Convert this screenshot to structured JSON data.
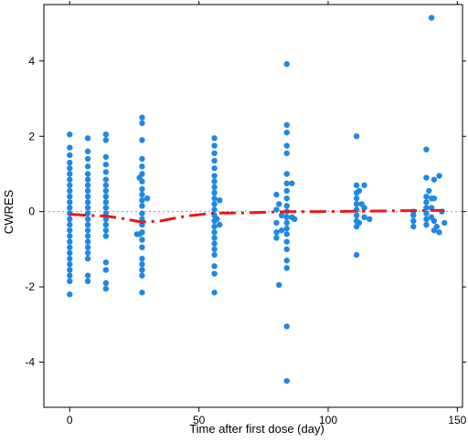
{
  "chart_data": {
    "type": "scatter",
    "xlabel": "Time after first dose (day)",
    "ylabel": "CWRES",
    "xlim": [
      -10,
      152
    ],
    "ylim": [
      -5.2,
      5.5
    ],
    "x_ticks": [
      0,
      50,
      100,
      150
    ],
    "y_ticks": [
      -4,
      -2,
      0,
      2,
      4
    ],
    "reference_line": {
      "y": 0,
      "style": "dotted",
      "color": "#999999"
    },
    "point_color": "#1e88e5",
    "trend_color": "#e41a1c",
    "series": [
      {
        "kind": "points",
        "points": [
          [
            0,
            2.05
          ],
          [
            0,
            1.7
          ],
          [
            0,
            1.5
          ],
          [
            0,
            1.3
          ],
          [
            0,
            1.15
          ],
          [
            0,
            1.0
          ],
          [
            0,
            0.85
          ],
          [
            0,
            0.7
          ],
          [
            0,
            0.55
          ],
          [
            0,
            0.4
          ],
          [
            0,
            0.25
          ],
          [
            0,
            0.1
          ],
          [
            0,
            -0.05
          ],
          [
            0,
            -0.2
          ],
          [
            0,
            -0.35
          ],
          [
            0,
            -0.5
          ],
          [
            0,
            -0.65
          ],
          [
            0,
            -0.8
          ],
          [
            0,
            -0.95
          ],
          [
            0,
            -1.1
          ],
          [
            0,
            -1.25
          ],
          [
            0,
            -1.4
          ],
          [
            0,
            -1.55
          ],
          [
            0,
            -1.7
          ],
          [
            0,
            -1.85
          ],
          [
            0,
            -2.2
          ],
          [
            7,
            1.95
          ],
          [
            7,
            1.6
          ],
          [
            7,
            1.4
          ],
          [
            7,
            1.2
          ],
          [
            7,
            1.0
          ],
          [
            7,
            0.85
          ],
          [
            7,
            0.7
          ],
          [
            7,
            0.55
          ],
          [
            7,
            0.4
          ],
          [
            7,
            0.25
          ],
          [
            7,
            0.1
          ],
          [
            7,
            -0.05
          ],
          [
            7,
            -0.2
          ],
          [
            7,
            -0.35
          ],
          [
            7,
            -0.5
          ],
          [
            7,
            -0.65
          ],
          [
            7,
            -0.8
          ],
          [
            7,
            -0.95
          ],
          [
            7,
            -1.1
          ],
          [
            7,
            -1.25
          ],
          [
            7,
            -1.7
          ],
          [
            7,
            -1.85
          ],
          [
            14,
            2.05
          ],
          [
            14,
            1.9
          ],
          [
            14,
            1.45
          ],
          [
            14,
            1.25
          ],
          [
            14,
            1.05
          ],
          [
            14,
            0.85
          ],
          [
            14,
            0.7
          ],
          [
            14,
            0.55
          ],
          [
            14,
            0.4
          ],
          [
            14,
            0.25
          ],
          [
            14,
            0.1
          ],
          [
            14,
            -0.05
          ],
          [
            14,
            -0.2
          ],
          [
            14,
            -0.35
          ],
          [
            14,
            -0.5
          ],
          [
            14,
            -0.65
          ],
          [
            14,
            -1.35
          ],
          [
            14,
            -1.55
          ],
          [
            14,
            -1.9
          ],
          [
            14,
            -2.05
          ],
          [
            27,
            0.9
          ],
          [
            27,
            -0.6
          ],
          [
            28,
            2.5
          ],
          [
            28,
            2.35
          ],
          [
            28,
            1.9
          ],
          [
            28,
            1.4
          ],
          [
            28,
            1.2
          ],
          [
            28,
            1.0
          ],
          [
            28,
            0.8
          ],
          [
            28,
            0.6
          ],
          [
            28,
            0.45
          ],
          [
            28,
            0.3
          ],
          [
            28,
            0.15
          ],
          [
            28,
            -0.05
          ],
          [
            28,
            -0.2
          ],
          [
            28,
            -0.35
          ],
          [
            28,
            -0.55
          ],
          [
            28,
            -0.75
          ],
          [
            28,
            -0.95
          ],
          [
            28,
            -1.25
          ],
          [
            28,
            -1.4
          ],
          [
            28,
            -1.55
          ],
          [
            28,
            -1.7
          ],
          [
            28,
            -2.15
          ],
          [
            30,
            0.35
          ],
          [
            26,
            -0.6
          ],
          [
            56,
            1.95
          ],
          [
            56,
            1.75
          ],
          [
            56,
            1.55
          ],
          [
            56,
            1.35
          ],
          [
            56,
            1.15
          ],
          [
            56,
            0.95
          ],
          [
            56,
            0.8
          ],
          [
            56,
            0.65
          ],
          [
            56,
            0.5
          ],
          [
            56,
            0.35
          ],
          [
            56,
            0.2
          ],
          [
            56,
            0.05
          ],
          [
            56,
            -0.1
          ],
          [
            56,
            -0.25
          ],
          [
            56,
            -0.4
          ],
          [
            56,
            -0.55
          ],
          [
            56,
            -0.7
          ],
          [
            56,
            -0.85
          ],
          [
            56,
            -1.0
          ],
          [
            56,
            -1.15
          ],
          [
            56,
            -1.45
          ],
          [
            56,
            -1.65
          ],
          [
            56,
            -2.15
          ],
          [
            58,
            0.3
          ],
          [
            58,
            -0.35
          ],
          [
            57,
            -0.2
          ],
          [
            84,
            3.92
          ],
          [
            84,
            2.3
          ],
          [
            84,
            2.1
          ],
          [
            84,
            1.75
          ],
          [
            84,
            1.55
          ],
          [
            84,
            1.0
          ],
          [
            84,
            0.75
          ],
          [
            84,
            0.55
          ],
          [
            84,
            0.35
          ],
          [
            84,
            0.15
          ],
          [
            84,
            0.0
          ],
          [
            84,
            -0.15
          ],
          [
            84,
            -0.3
          ],
          [
            84,
            -0.45
          ],
          [
            84,
            -0.6
          ],
          [
            84,
            -0.8
          ],
          [
            84,
            -1.0
          ],
          [
            84,
            -1.3
          ],
          [
            84,
            -1.5
          ],
          [
            84,
            -3.05
          ],
          [
            84,
            -4.5
          ],
          [
            80,
            0.45
          ],
          [
            80,
            0.05
          ],
          [
            80,
            -0.3
          ],
          [
            80,
            -0.55
          ],
          [
            80,
            -0.7
          ],
          [
            81,
            -1.95
          ],
          [
            81,
            0.2
          ],
          [
            82,
            -0.1
          ],
          [
            82,
            -0.5
          ],
          [
            86,
            0.75
          ],
          [
            86,
            -0.15
          ],
          [
            87,
            -0.2
          ],
          [
            111,
            2.0
          ],
          [
            111,
            0.7
          ],
          [
            111,
            0.5
          ],
          [
            111,
            0.35
          ],
          [
            111,
            0.2
          ],
          [
            111,
            0.05
          ],
          [
            111,
            -0.1
          ],
          [
            111,
            -0.25
          ],
          [
            111,
            -0.4
          ],
          [
            111,
            -1.15
          ],
          [
            112,
            0.55
          ],
          [
            112,
            -0.3
          ],
          [
            113,
            0.2
          ],
          [
            114,
            0.7
          ],
          [
            114,
            0.1
          ],
          [
            114,
            -0.15
          ],
          [
            116,
            -0.2
          ],
          [
            133,
            0.0
          ],
          [
            133,
            -0.1
          ],
          [
            133,
            -0.25
          ],
          [
            133,
            -0.4
          ],
          [
            138,
            1.65
          ],
          [
            138,
            0.9
          ],
          [
            138,
            0.4
          ],
          [
            138,
            0.25
          ],
          [
            138,
            0.1
          ],
          [
            138,
            -0.05
          ],
          [
            138,
            -0.2
          ],
          [
            138,
            -0.35
          ],
          [
            139,
            0.55
          ],
          [
            140,
            0.35
          ],
          [
            140,
            0.1
          ],
          [
            140,
            -0.15
          ],
          [
            141,
            0.85
          ],
          [
            141,
            0.35
          ],
          [
            141,
            -0.25
          ],
          [
            141,
            -0.5
          ],
          [
            142,
            -0.4
          ],
          [
            143,
            0.95
          ],
          [
            143,
            -0.55
          ],
          [
            144,
            0.0
          ],
          [
            145,
            -0.3
          ],
          [
            140,
            5.15
          ]
        ]
      },
      {
        "kind": "trend",
        "points": [
          [
            0,
            -0.07
          ],
          [
            7,
            -0.1
          ],
          [
            14,
            -0.12
          ],
          [
            20,
            -0.18
          ],
          [
            28,
            -0.28
          ],
          [
            35,
            -0.25
          ],
          [
            45,
            -0.12
          ],
          [
            56,
            -0.04
          ],
          [
            65,
            -0.04
          ],
          [
            75,
            -0.02
          ],
          [
            84,
            0.0
          ],
          [
            95,
            0.0
          ],
          [
            111,
            0.01
          ],
          [
            125,
            0.02
          ],
          [
            140,
            0.03
          ],
          [
            145,
            0.03
          ]
        ]
      }
    ]
  }
}
